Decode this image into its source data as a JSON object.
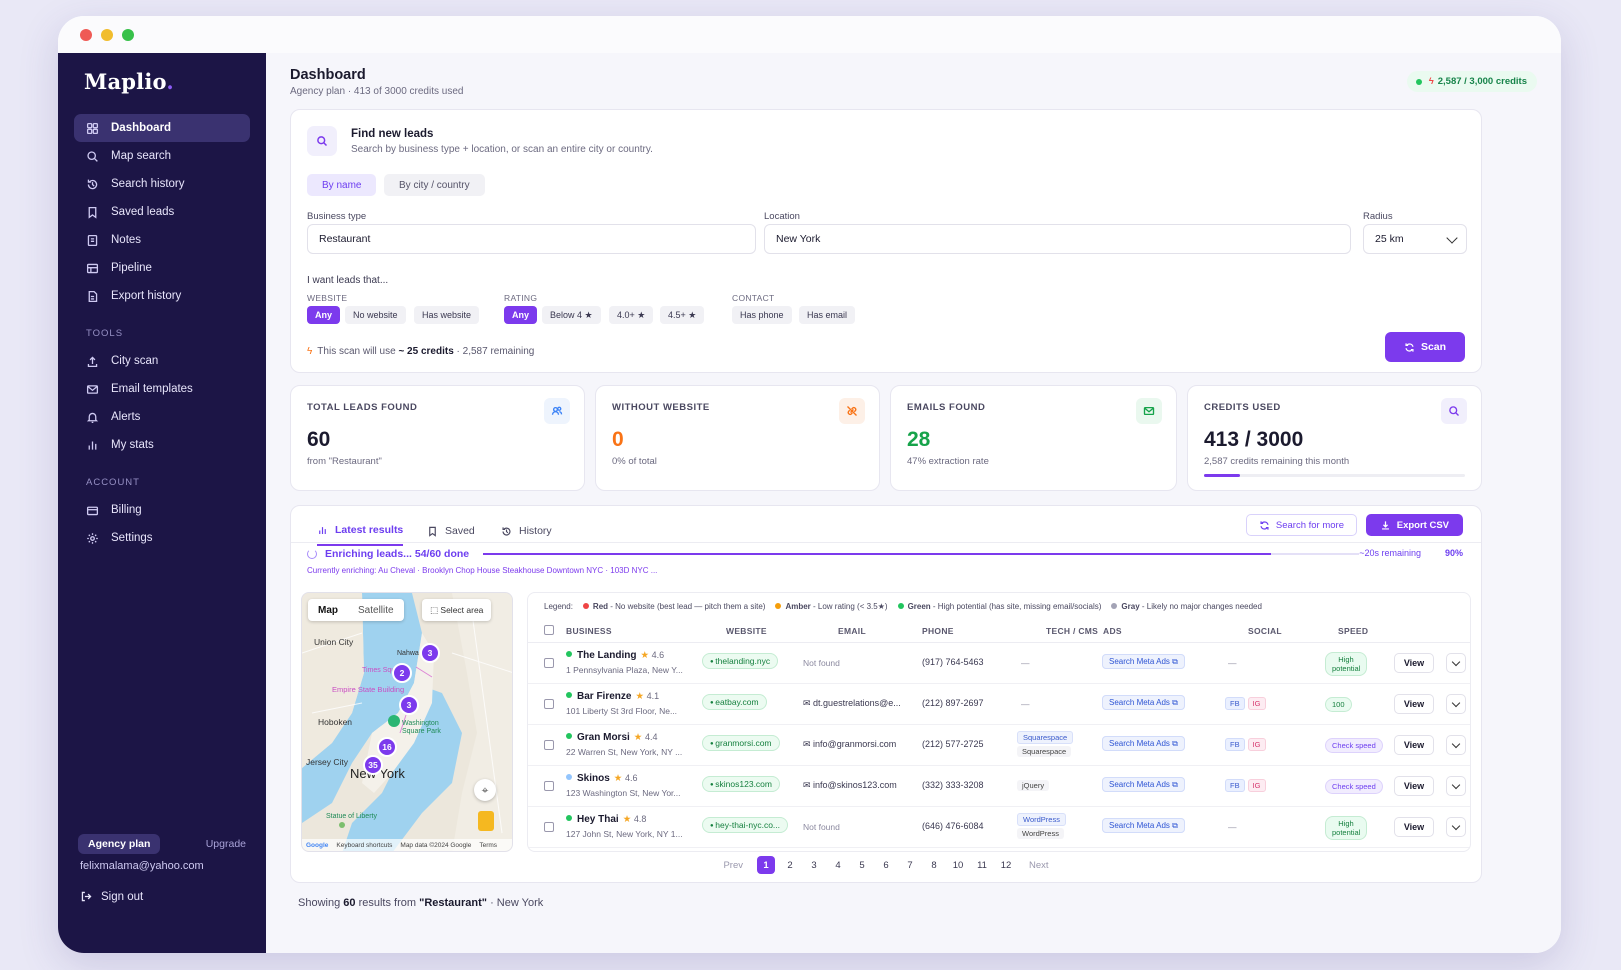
{
  "app": {
    "name": "Maplio",
    "name_dot": "."
  },
  "sidebar": {
    "main_items": [
      {
        "label": "Dashboard",
        "icon": "grid-icon",
        "active": true
      },
      {
        "label": "Map search",
        "icon": "search-icon"
      },
      {
        "label": "Search history",
        "icon": "history-icon"
      },
      {
        "label": "Saved leads",
        "icon": "bookmark-icon"
      },
      {
        "label": "Notes",
        "icon": "note-icon"
      },
      {
        "label": "Pipeline",
        "icon": "pipeline-icon"
      },
      {
        "label": "Export history",
        "icon": "file-icon"
      }
    ],
    "tools_title": "TOOLS",
    "tools_items": [
      {
        "label": "City scan",
        "icon": "upload-icon"
      },
      {
        "label": "Email templates",
        "icon": "mail-icon"
      },
      {
        "label": "Alerts",
        "icon": "bell-icon"
      },
      {
        "label": "My stats",
        "icon": "bar-chart-icon"
      }
    ],
    "account_title": "ACCOUNT",
    "account_items": [
      {
        "label": "Billing",
        "icon": "card-icon"
      },
      {
        "label": "Settings",
        "icon": "gear-icon"
      }
    ],
    "plan_label": "Agency plan",
    "upgrade_label": "Upgrade",
    "user_email": "felixmalama@yahoo.com",
    "sign_out_label": "Sign out"
  },
  "header": {
    "title": "Dashboard",
    "subtitle": "Agency plan · 413 of 3000 credits used",
    "credits_badge": "2,587 / 3,000 credits"
  },
  "search": {
    "title": "Find new leads",
    "subtitle": "Search by business type + location, or scan an entire city or country.",
    "mode_tabs": [
      "By name",
      "By city / country"
    ],
    "business_type_label": "Business type",
    "business_type_value": "Restaurant",
    "location_label": "Location",
    "location_value": "New York",
    "radius_label": "Radius",
    "radius_value": "25 km",
    "want_label": "I want leads that...",
    "website_label": "WEBSITE",
    "website_options": [
      "Any",
      "No website",
      "Has website"
    ],
    "rating_label": "RATING",
    "rating_options": [
      "Any",
      "Below 4 ★",
      "4.0+ ★",
      "4.5+ ★"
    ],
    "contact_label": "CONTACT",
    "contact_options": [
      "Has phone",
      "Has email"
    ],
    "cost_prefix": "This scan will use",
    "cost_amount": "~ 25 credits",
    "cost_suffix": "· 2,587 remaining",
    "scan_label": "Scan"
  },
  "stats": [
    {
      "label": "TOTAL LEADS FOUND",
      "value": "60",
      "caption": "from \"Restaurant\"",
      "icon": "users-icon",
      "value_color": "#1b1a2e",
      "icon_bg": "#eef4fd",
      "icon_color": "#3b82f6"
    },
    {
      "label": "WITHOUT WEBSITE",
      "value": "0",
      "caption": "0% of total",
      "icon": "no-link-icon",
      "value_color": "#f97316",
      "icon_bg": "#fdf0e7",
      "icon_color": "#f97316"
    },
    {
      "label": "EMAILS FOUND",
      "value": "28",
      "caption": "47% extraction rate",
      "icon": "mail-icon",
      "value_color": "#16a34a",
      "icon_bg": "#eaf8ef",
      "icon_color": "#16a34a"
    },
    {
      "label": "CREDITS USED",
      "value": "413 / 3000",
      "caption": "2,587 credits remaining this month",
      "icon": "search-icon",
      "value_color": "#1b1a2e",
      "icon_bg": "#f1effc",
      "icon_color": "#7c3aed",
      "progress": 0.1377
    }
  ],
  "results": {
    "tabs": [
      "Latest results",
      "Saved",
      "History"
    ],
    "search_more_label": "Search for more",
    "export_label": "Export CSV",
    "enrich_title": "Enriching leads... 54/60 done",
    "enrich_progress": 0.9,
    "enrich_remaining": "~20s remaining",
    "enrich_pct": "90%",
    "enrich_current": "Currently enriching: Au Cheval · Brooklyn Chop House Steakhouse Downtown NYC · 103D NYC ..."
  },
  "map": {
    "mode_map": "Map",
    "mode_satellite": "Satellite",
    "select_area": "Select area",
    "labels": {
      "union_city": "Union City",
      "empire": "Empire State Building",
      "hoboken": "Hoboken",
      "washington_sq": "Washington Square Park",
      "jersey_city": "Jersey City",
      "new_york": "New York",
      "statue": "Statue of Liberty",
      "nahwa": "Nahwa",
      "times": "Times Square"
    },
    "clusters": [
      "3",
      "2",
      "3",
      "16",
      "35"
    ],
    "footer_google": "Google",
    "footer_shortcuts": "Keyboard shortcuts",
    "footer_data": "Map data ©2024 Google",
    "footer_terms": "Terms"
  },
  "table": {
    "legend_label": "Legend:",
    "legend": [
      {
        "color": "#ef4444",
        "name": "Red",
        "desc": " - No website (best lead — pitch them a site)"
      },
      {
        "color": "#f59e0b",
        "name": "Amber",
        "desc": " - Low rating (< 3.5★)"
      },
      {
        "color": "#22c55e",
        "name": "Green",
        "desc": " - High potential (has site, missing email/socials)"
      },
      {
        "color": "#a3a3b5",
        "name": "Gray",
        "desc": " - Likely no major changes needed"
      }
    ],
    "headers": [
      "BUSINESS",
      "WEBSITE",
      "EMAIL",
      "PHONE",
      "TECH / CMS",
      "ADS",
      "SOCIAL",
      "SPEED"
    ],
    "rows": [
      {
        "name": "The Landing",
        "rating": "4.6",
        "address": "1 Pennsylvania Plaza, New Y...",
        "dot": "#22c55e",
        "website": "thelanding.nyc",
        "email": "Not found",
        "phone": "(917) 764-5463",
        "tech": [
          "—"
        ],
        "ads": "Search Meta Ads",
        "social": [],
        "social_empty": "—",
        "speed": "High potential",
        "speed_style": "green",
        "view": "View"
      },
      {
        "name": "Bar Firenze",
        "rating": "4.1",
        "address": "101 Liberty St 3rd Floor, Ne...",
        "dot": "#22c55e",
        "website": "eatbay.com",
        "email": "dt.guestrelations@e...",
        "phone": "(212) 897-2697",
        "tech": [
          "—"
        ],
        "ads": "Search Meta Ads",
        "social": [
          "FB",
          "IG"
        ],
        "speed": "100",
        "speed_style": "green",
        "view": "View"
      },
      {
        "name": "Gran Morsi",
        "rating": "4.4",
        "address": "22 Warren St, New York, NY ...",
        "dot": "#22c55e",
        "website": "granmorsi.com",
        "email": "info@granmorsi.com",
        "phone": "(212) 577-2725",
        "tech": [
          "Squarespace",
          "Squarespace"
        ],
        "ads": "Search Meta Ads",
        "social": [
          "FB",
          "IG"
        ],
        "speed": "Check speed",
        "speed_style": "purple",
        "view": "View"
      },
      {
        "name": "Skinos",
        "rating": "4.6",
        "address": "123 Washington St, New Yor...",
        "dot": "#93c5fd",
        "website": "skinos123.com",
        "email": "info@skinos123.com",
        "phone": "(332) 333-3208",
        "tech": [
          "jQuery"
        ],
        "ads": "Search Meta Ads",
        "social": [
          "FB",
          "IG"
        ],
        "speed": "Check speed",
        "speed_style": "purple",
        "view": "View"
      },
      {
        "name": "Hey Thai",
        "rating": "4.8",
        "address": "127 John St, New York, NY 1...",
        "dot": "#22c55e",
        "website": "hey-thai-nyc.co...",
        "email": "Not found",
        "phone": "(646) 476-6084",
        "tech": [
          "WordPress",
          "WordPress"
        ],
        "ads": "Search Meta Ads",
        "social": [],
        "social_empty": "—",
        "speed": "High potential",
        "speed_style": "green",
        "view": "View"
      }
    ]
  },
  "pager": {
    "prev": "Prev",
    "next": "Next",
    "pages": [
      "1",
      "2",
      "3",
      "4",
      "5",
      "6",
      "7",
      "8",
      "10",
      "11",
      "12"
    ],
    "current": "1"
  },
  "footer": {
    "prefix": "Showing",
    "count": "60",
    "middle": "results from",
    "query": "\"Restaurant\"",
    "suffix": "· New York"
  }
}
